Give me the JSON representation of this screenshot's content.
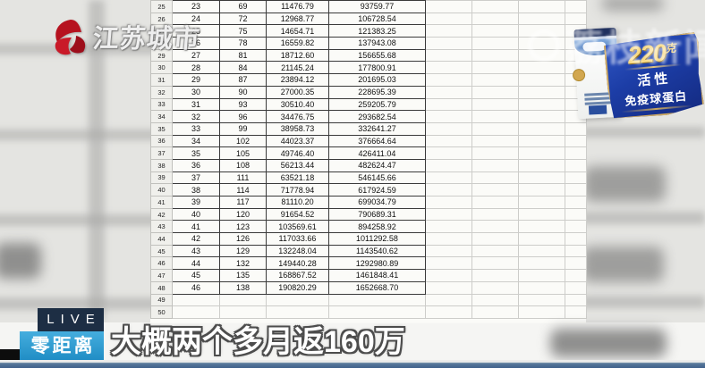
{
  "channel": {
    "logo_text": "江苏城市"
  },
  "watermark": {
    "text": "荔枝新闻"
  },
  "live_badge": {
    "top": "LIVE",
    "bottom": "零距离"
  },
  "subtitle": {
    "text": "大概两个多月返160万"
  },
  "ad": {
    "amount": "220",
    "unit": "克",
    "line1": "活性",
    "line2": "免疫球蛋白"
  },
  "colors": {
    "badge_navy": "#1d2e44",
    "badge_blue": "#2795cd",
    "banner_blue": "#1c3da6",
    "banner_gold": "#d3ad62",
    "gold_text": "#f8d87e",
    "logo_red": "#b6121f",
    "bottom_strip_blue": "#54779a"
  },
  "spreadsheet": {
    "row_headers": [
      "25",
      "26",
      "27",
      "28",
      "29",
      "30",
      "31",
      "32",
      "33",
      "34",
      "35",
      "36",
      "37",
      "38",
      "39",
      "40",
      "41",
      "42",
      "43",
      "44",
      "45",
      "46",
      "47",
      "48",
      "49",
      "50"
    ],
    "data_rows": [
      [
        "23",
        "69",
        "11476.79",
        "93759.77"
      ],
      [
        "24",
        "72",
        "12968.77",
        "106728.54"
      ],
      [
        "25",
        "75",
        "14654.71",
        "121383.25"
      ],
      [
        "26",
        "78",
        "16559.82",
        "137943.08"
      ],
      [
        "27",
        "81",
        "18712.60",
        "156655.68"
      ],
      [
        "28",
        "84",
        "21145.24",
        "177800.91"
      ],
      [
        "29",
        "87",
        "23894.12",
        "201695.03"
      ],
      [
        "30",
        "90",
        "27000.35",
        "228695.39"
      ],
      [
        "31",
        "93",
        "30510.40",
        "259205.79"
      ],
      [
        "32",
        "96",
        "34476.75",
        "293682.54"
      ],
      [
        "33",
        "99",
        "38958.73",
        "332641.27"
      ],
      [
        "34",
        "102",
        "44023.37",
        "376664.64"
      ],
      [
        "35",
        "105",
        "49746.40",
        "426411.04"
      ],
      [
        "36",
        "108",
        "56213.44",
        "482624.47"
      ],
      [
        "37",
        "111",
        "63521.18",
        "546145.66"
      ],
      [
        "38",
        "114",
        "71778.94",
        "617924.59"
      ],
      [
        "39",
        "117",
        "81110.20",
        "699034.79"
      ],
      [
        "40",
        "120",
        "91654.52",
        "790689.31"
      ],
      [
        "41",
        "123",
        "103569.61",
        "894258.92"
      ],
      [
        "42",
        "126",
        "117033.66",
        "1011292.58"
      ],
      [
        "43",
        "129",
        "132248.04",
        "1143540.62"
      ],
      [
        "44",
        "132",
        "149440.28",
        "1292980.89"
      ],
      [
        "45",
        "135",
        "168867.52",
        "1461848.41"
      ],
      [
        "46",
        "138",
        "190820.29",
        "1652668.70"
      ]
    ],
    "trailing_empty_rows": 2,
    "empty_columns_right": 4
  }
}
